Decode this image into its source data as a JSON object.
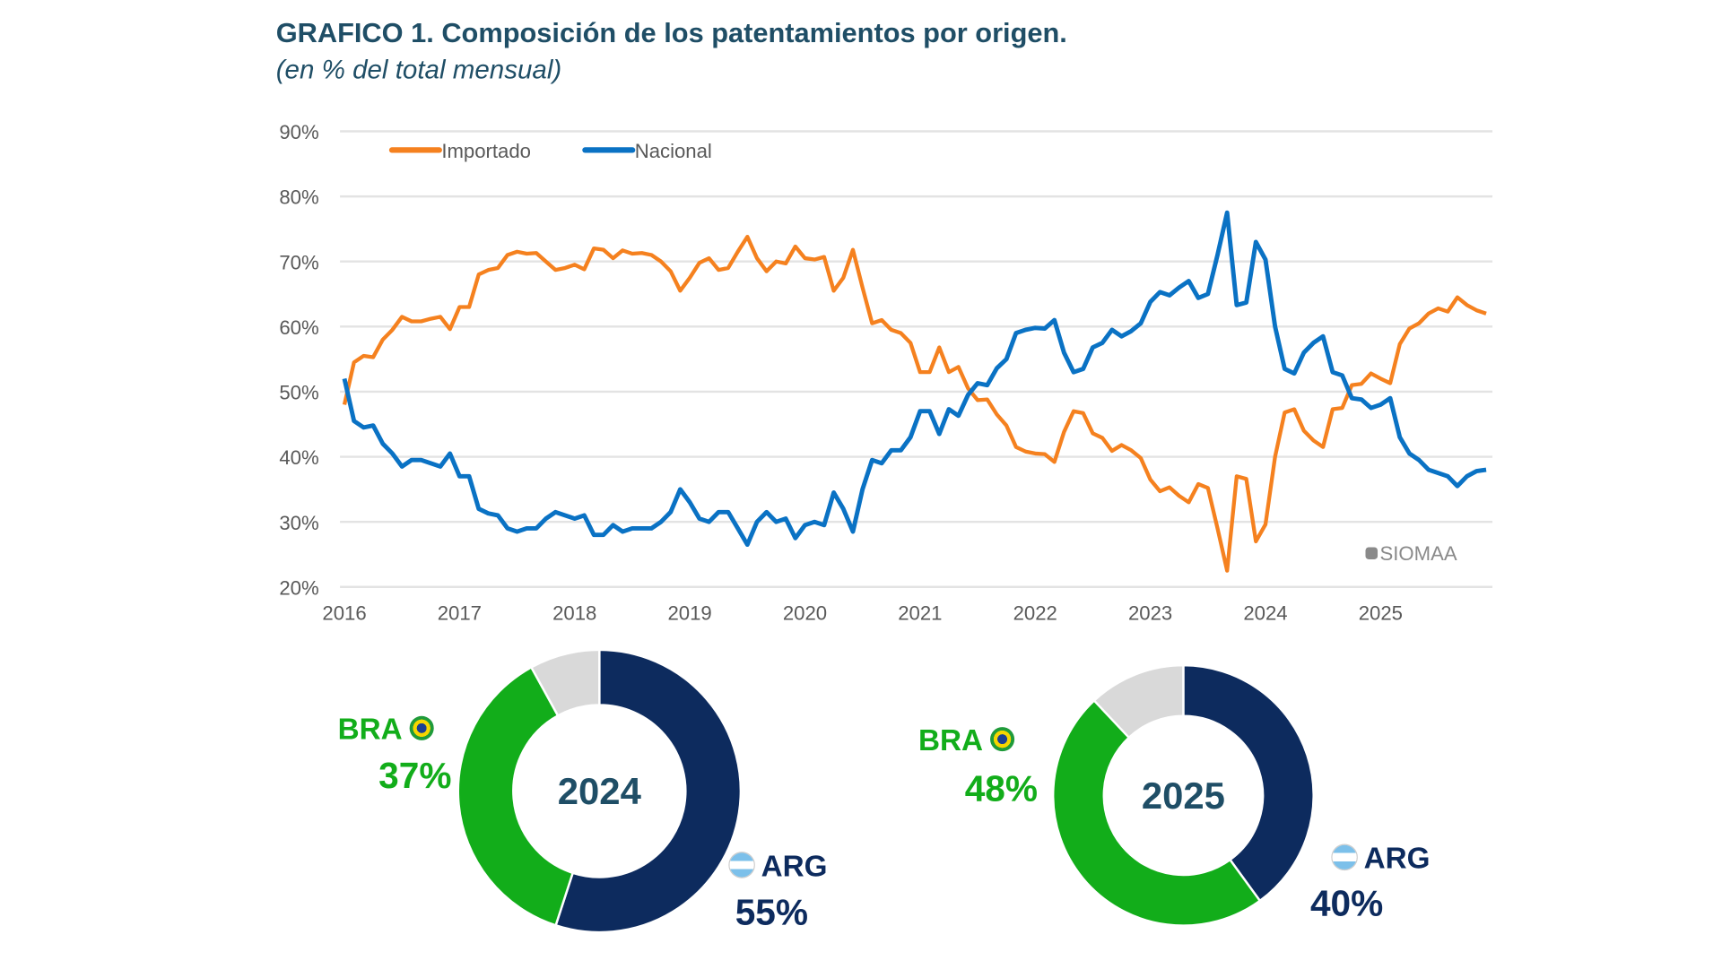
{
  "header": {
    "title": "GRAFICO 1. Composición de los patentamientos por origen.",
    "subtitle": "(en % del total mensual)"
  },
  "chart_data": [
    {
      "type": "line",
      "ylim": [
        20,
        90
      ],
      "yticks": [
        "20%",
        "30%",
        "40%",
        "50%",
        "60%",
        "70%",
        "80%",
        "90%"
      ],
      "xticks": [
        "2016",
        "2017",
        "2018",
        "2019",
        "2020",
        "2021",
        "2022",
        "2023",
        "2024",
        "2025"
      ],
      "grid": true,
      "legend": "top-left",
      "watermark": "SIOMAA",
      "x_start": "2016-01",
      "x_frequency": "monthly",
      "series": [
        {
          "name": "Importado",
          "color": "#f5811f",
          "values": [
            48,
            54.5,
            55.5,
            55.3,
            58,
            59.5,
            61.5,
            60.8,
            60.8,
            61.2,
            61.5,
            59.6,
            63,
            63,
            68,
            68.7,
            69,
            71,
            71.5,
            71.2,
            71.3,
            70,
            68.7,
            69,
            69.5,
            68.8,
            72,
            71.8,
            70.5,
            71.7,
            71.2,
            71.3,
            71,
            70,
            68.5,
            65.5,
            67.5,
            69.8,
            70.5,
            68.7,
            69,
            71.5,
            73.8,
            70.5,
            68.5,
            70,
            69.7,
            72.3,
            70.5,
            70.3,
            70.7,
            65.5,
            67.5,
            71.8,
            66,
            60.5,
            61,
            59.5,
            59,
            57.5,
            53,
            53,
            56.8,
            53,
            53.8,
            50.5,
            48.7,
            48.8,
            46.5,
            44.8,
            41.5,
            40.8,
            40.5,
            40.4,
            39.2,
            43.8,
            47,
            46.7,
            43.6,
            42.9,
            40.9,
            41.8,
            41,
            39.8,
            36.5,
            34.7,
            35.3,
            34,
            33,
            35.8,
            35.2,
            29,
            22.5,
            37,
            36.6,
            27,
            29.6,
            40,
            46.8,
            47.3,
            44,
            42.5,
            41.5,
            47.3,
            47.5,
            51,
            51.2,
            52.8,
            52,
            51.3,
            57.3,
            59.7,
            60.5,
            62,
            62.8,
            62.3,
            64.5,
            63.3,
            62.5,
            62
          ]
        },
        {
          "name": "Nacional",
          "color": "#0a72c4",
          "values": [
            52,
            45.5,
            44.5,
            44.8,
            42,
            40.5,
            38.5,
            39.5,
            39.5,
            39,
            38.5,
            40.5,
            37,
            37,
            32,
            31.3,
            31,
            29,
            28.5,
            29,
            29,
            30.5,
            31.5,
            31,
            30.5,
            31,
            28,
            28,
            29.5,
            28.5,
            29,
            29,
            29,
            30,
            31.5,
            35,
            33,
            30.5,
            30,
            31.5,
            31.5,
            29,
            26.5,
            30,
            31.5,
            30,
            30.5,
            27.5,
            29.5,
            30,
            29.5,
            34.5,
            32,
            28.5,
            35,
            39.5,
            39,
            41,
            41,
            43,
            47,
            47,
            43.5,
            47.3,
            46.3,
            49.5,
            51.3,
            51,
            53.6,
            55,
            59,
            59.5,
            59.8,
            59.7,
            61,
            56,
            53,
            53.5,
            56.8,
            57.5,
            59.5,
            58.5,
            59.3,
            60.5,
            63.8,
            65.3,
            64.8,
            66,
            67,
            64.4,
            65,
            71,
            77.5,
            63.3,
            63.7,
            73,
            70.3,
            60,
            53.5,
            52.8,
            56,
            57.5,
            58.5,
            53,
            52.5,
            49,
            48.8,
            47.5,
            48,
            49,
            43,
            40.5,
            39.5,
            38,
            37.5,
            37,
            35.5,
            37,
            37.8,
            38
          ]
        }
      ]
    },
    {
      "type": "pie",
      "variant": "donut",
      "center_label": "2024",
      "slices": [
        {
          "label": "ARG",
          "value": 55,
          "pct": "55%",
          "color": "#0d2b5e"
        },
        {
          "label": "BRA",
          "value": 37,
          "pct": "37%",
          "color": "#12ad1a"
        },
        {
          "label": "",
          "value": 8,
          "color": "#d9d9d9"
        }
      ]
    },
    {
      "type": "pie",
      "variant": "donut",
      "center_label": "2025",
      "slices": [
        {
          "label": "ARG",
          "value": 40,
          "pct": "40%",
          "color": "#0d2b5e"
        },
        {
          "label": "BRA",
          "value": 48,
          "pct": "48%",
          "color": "#12ad1a"
        },
        {
          "label": "",
          "value": 12,
          "color": "#d9d9d9"
        }
      ]
    }
  ]
}
